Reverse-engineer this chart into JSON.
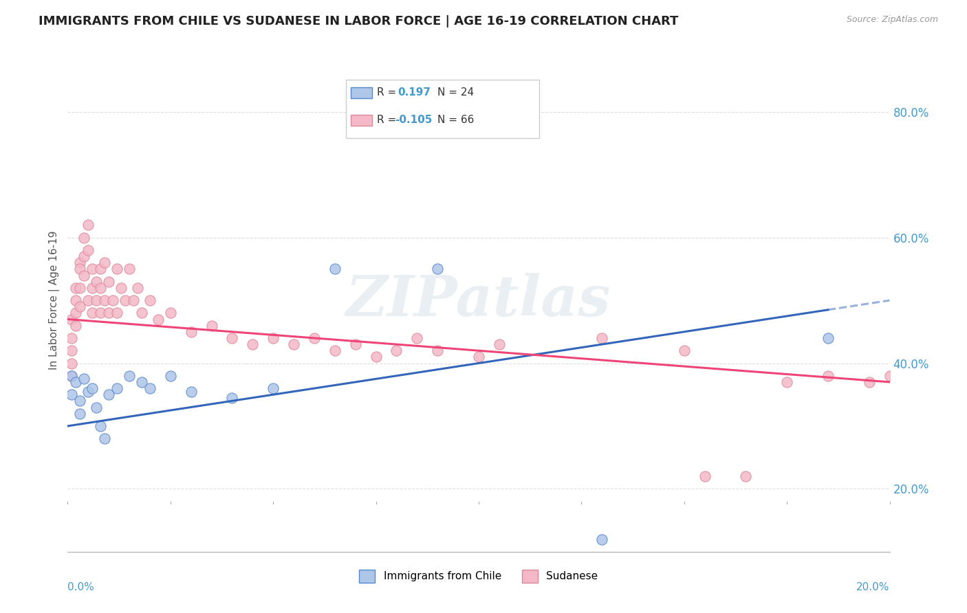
{
  "title": "IMMIGRANTS FROM CHILE VS SUDANESE IN LABOR FORCE | AGE 16-19 CORRELATION CHART",
  "source": "Source: ZipAtlas.com",
  "ylabel": "In Labor Force | Age 16-19",
  "watermark": "ZIPatlas",
  "legend_r1_prefix": "R = ",
  "legend_r1_val": "0.197",
  "legend_n1": "N = 24",
  "legend_r2_prefix": "R = ",
  "legend_r2_val": "-0.105",
  "legend_n2": "N = 66",
  "chile_color": "#aec6e8",
  "chile_edge": "#5588cc",
  "sudanese_color": "#f4b8c8",
  "sudanese_edge": "#dd8899",
  "line_chile_color": "#3366bb",
  "line_sudanese_color": "#ee4477",
  "axis_label_color": "#4499cc",
  "grid_color": "#dddddd",
  "title_color": "#222222",
  "source_color": "#999999",
  "background_color": "#ffffff",
  "xlim": [
    0.0,
    0.2
  ],
  "ylim": [
    0.1,
    0.9
  ],
  "ytick_vals": [
    0.2,
    0.4,
    0.6,
    0.8
  ],
  "ytick_labels": [
    "20.0%",
    "40.0%",
    "60.0%",
    "80.0%"
  ],
  "chile_x": [
    0.001,
    0.001,
    0.002,
    0.003,
    0.003,
    0.004,
    0.005,
    0.006,
    0.007,
    0.008,
    0.009,
    0.01,
    0.012,
    0.015,
    0.018,
    0.02,
    0.025,
    0.03,
    0.04,
    0.05,
    0.065,
    0.09,
    0.13,
    0.185
  ],
  "chile_y": [
    0.38,
    0.35,
    0.37,
    0.34,
    0.32,
    0.375,
    0.355,
    0.36,
    0.33,
    0.3,
    0.28,
    0.35,
    0.36,
    0.38,
    0.37,
    0.36,
    0.38,
    0.355,
    0.345,
    0.36,
    0.55,
    0.55,
    0.12,
    0.44
  ],
  "sudanese_x": [
    0.001,
    0.001,
    0.001,
    0.001,
    0.001,
    0.002,
    0.002,
    0.002,
    0.002,
    0.003,
    0.003,
    0.003,
    0.003,
    0.004,
    0.004,
    0.004,
    0.005,
    0.005,
    0.005,
    0.006,
    0.006,
    0.006,
    0.007,
    0.007,
    0.008,
    0.008,
    0.008,
    0.009,
    0.009,
    0.01,
    0.01,
    0.011,
    0.012,
    0.012,
    0.013,
    0.014,
    0.015,
    0.016,
    0.017,
    0.018,
    0.02,
    0.022,
    0.025,
    0.03,
    0.035,
    0.04,
    0.045,
    0.05,
    0.055,
    0.06,
    0.065,
    0.07,
    0.075,
    0.08,
    0.085,
    0.09,
    0.1,
    0.105,
    0.13,
    0.15,
    0.155,
    0.165,
    0.175,
    0.185,
    0.195,
    0.2
  ],
  "sudanese_y": [
    0.47,
    0.44,
    0.42,
    0.4,
    0.38,
    0.52,
    0.5,
    0.48,
    0.46,
    0.56,
    0.55,
    0.52,
    0.49,
    0.6,
    0.57,
    0.54,
    0.62,
    0.58,
    0.5,
    0.55,
    0.52,
    0.48,
    0.53,
    0.5,
    0.55,
    0.52,
    0.48,
    0.56,
    0.5,
    0.53,
    0.48,
    0.5,
    0.55,
    0.48,
    0.52,
    0.5,
    0.55,
    0.5,
    0.52,
    0.48,
    0.5,
    0.47,
    0.48,
    0.45,
    0.46,
    0.44,
    0.43,
    0.44,
    0.43,
    0.44,
    0.42,
    0.43,
    0.41,
    0.42,
    0.44,
    0.42,
    0.41,
    0.43,
    0.44,
    0.42,
    0.22,
    0.22,
    0.37,
    0.38,
    0.37,
    0.38
  ]
}
